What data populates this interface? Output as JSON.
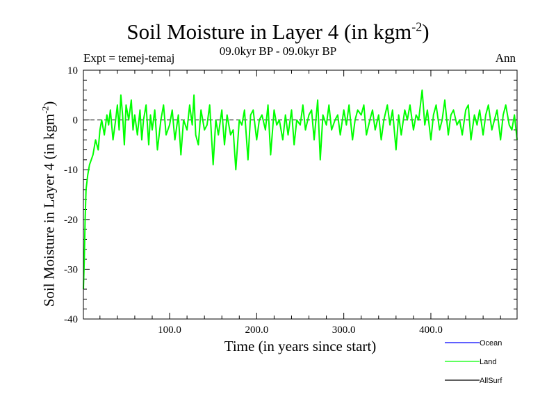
{
  "chart_data": {
    "type": "line",
    "title": "Soil Moisture in Layer 4 (in kgm",
    "title_superscript": "-2",
    "title_close": ")",
    "subtitle": "09.0kyr BP - 09.0kyr BP",
    "experiment": "Expt = temej-temaj",
    "season": "Ann",
    "xlabel": "Time (in years since start)",
    "ylabel": "Soil Moisture in Layer 4 (in kgm",
    "ylabel_superscript": "-2",
    "ylabel_close": ")",
    "xlim": [
      1,
      499
    ],
    "ylim": [
      -40,
      10
    ],
    "x_ticks": [
      100,
      200,
      300,
      400
    ],
    "x_tick_labels": [
      "100.0",
      "200.0",
      "300.0",
      "400.0"
    ],
    "y_ticks": [
      -40,
      -30,
      -20,
      -10,
      0,
      10
    ],
    "y_tick_labels": [
      "-40",
      "-30",
      "-20",
      "-10",
      "0",
      "10"
    ],
    "reference_line": 0,
    "legend_position": "bottom-right",
    "series": [
      {
        "name": "Ocean",
        "color": "#0000ff",
        "x": [],
        "values": []
      },
      {
        "name": "Land",
        "color": "#00ff00",
        "x": [
          1,
          2,
          3,
          4,
          6,
          8,
          10,
          12,
          15,
          18,
          20,
          22,
          25,
          28,
          30,
          32,
          35,
          38,
          40,
          42,
          44,
          46,
          48,
          50,
          53,
          56,
          58,
          60,
          63,
          66,
          68,
          70,
          73,
          76,
          78,
          80,
          83,
          86,
          90,
          93,
          96,
          100,
          103,
          106,
          110,
          113,
          116,
          120,
          123,
          126,
          128,
          130,
          133,
          136,
          140,
          143,
          146,
          150,
          153,
          156,
          160,
          163,
          166,
          170,
          173,
          176,
          180,
          183,
          186,
          190,
          193,
          196,
          200,
          203,
          206,
          210,
          213,
          216,
          220,
          223,
          226,
          230,
          233,
          236,
          240,
          243,
          246,
          250,
          253,
          256,
          260,
          263,
          266,
          270,
          273,
          276,
          280,
          283,
          286,
          290,
          293,
          296,
          300,
          303,
          306,
          310,
          313,
          316,
          320,
          323,
          326,
          330,
          333,
          336,
          340,
          343,
          346,
          350,
          353,
          356,
          360,
          363,
          366,
          370,
          373,
          376,
          380,
          383,
          386,
          390,
          393,
          396,
          400,
          403,
          406,
          410,
          413,
          416,
          420,
          423,
          426,
          430,
          433,
          436,
          440,
          443,
          446,
          450,
          453,
          456,
          460,
          463,
          466,
          470,
          473,
          476,
          480,
          483,
          486,
          490,
          493,
          496,
          499
        ],
        "values": [
          -34,
          -28,
          -20,
          -14,
          -11,
          -9,
          -8,
          -7,
          -4,
          -6,
          -2,
          0,
          -3,
          1,
          -1,
          2,
          -4,
          0,
          3,
          -2,
          5,
          1,
          -5,
          3,
          0,
          4,
          -2,
          1,
          -3,
          2,
          -4,
          0,
          3,
          -5,
          1,
          -2,
          2,
          -6,
          0,
          3,
          -3,
          -1,
          2,
          -4,
          1,
          -7,
          0,
          -2,
          3,
          -1,
          5,
          -3,
          -5,
          2,
          -2,
          -1,
          3,
          -9,
          0,
          -3,
          2,
          -5,
          1,
          -3,
          -2,
          -10,
          0,
          -1,
          2,
          -8,
          1,
          2,
          -4,
          0,
          1,
          -2,
          3,
          -7,
          2,
          -1,
          0,
          -4,
          1,
          -3,
          2,
          -5,
          0,
          -1,
          3,
          -2,
          1,
          2,
          -4,
          4,
          -8,
          1,
          -1,
          3,
          -2,
          0,
          1,
          -3,
          2,
          -1,
          3,
          -4,
          0,
          2,
          1,
          3,
          -3,
          0,
          2,
          -2,
          1,
          -4,
          0,
          3,
          -1,
          2,
          -6,
          1,
          -3,
          2,
          0,
          3,
          -2,
          1,
          0,
          6,
          -1,
          2,
          -4,
          1,
          3,
          -2,
          0,
          4,
          -3,
          1,
          2,
          -1,
          0,
          -3,
          2,
          3,
          -4,
          1,
          -1,
          2,
          -3,
          1,
          3,
          -2,
          0,
          2,
          -4,
          1,
          3,
          -1,
          -2,
          1,
          -4
        ]
      },
      {
        "name": "AllSurf",
        "color": "#000000",
        "x": [],
        "values": []
      }
    ]
  }
}
